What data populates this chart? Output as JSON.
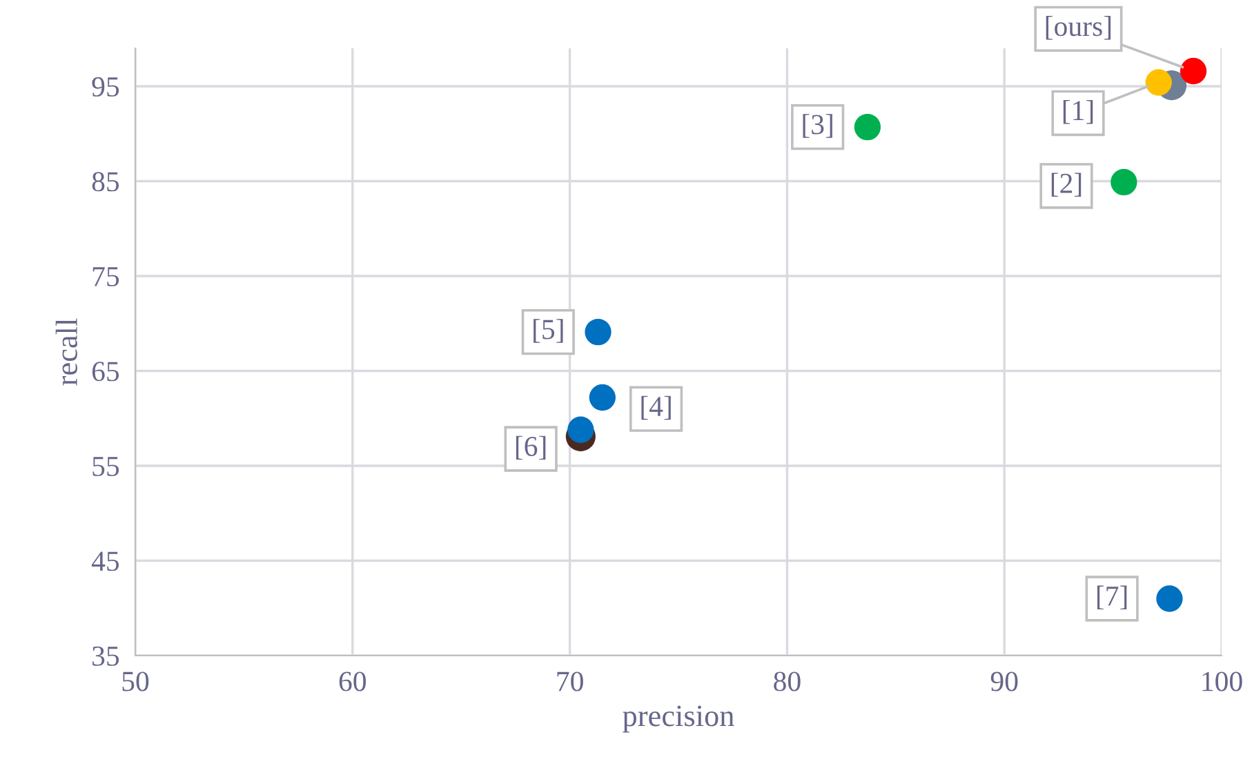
{
  "chart_data": {
    "type": "scatter",
    "xlabel": "precision",
    "ylabel": "recall",
    "xlim": [
      50,
      100
    ],
    "xticks": [
      50,
      60,
      70,
      80,
      90,
      100
    ],
    "ylim": [
      35,
      99
    ],
    "yticks": [
      35,
      45,
      55,
      65,
      75,
      85,
      95
    ],
    "grid": true,
    "legend": false,
    "marker": "circle",
    "series": [
      {
        "color": "#6f7f95",
        "x": [
          97.7
        ],
        "values": [
          95.1
        ]
      },
      {
        "color": "#4a2a20",
        "x": [
          70.5
        ],
        "values": [
          58.1
        ]
      },
      {
        "name": "[ours]",
        "color": "#ff0000",
        "x": [
          98.7
        ],
        "values": [
          96.6
        ]
      },
      {
        "name": "[1]",
        "color": "#ffc000",
        "x": [
          97.1
        ],
        "values": [
          95.4
        ]
      },
      {
        "name": "[2]",
        "color": "#00b050",
        "x": [
          95.5
        ],
        "values": [
          84.9
        ]
      },
      {
        "name": "[3]",
        "color": "#00b050",
        "x": [
          83.7
        ],
        "values": [
          90.7
        ]
      },
      {
        "name": "[5]",
        "color": "#0070c0",
        "x": [
          71.3
        ],
        "values": [
          69.1
        ]
      },
      {
        "name": "[4]",
        "color": "#0070c0",
        "x": [
          71.5
        ],
        "values": [
          62.2
        ]
      },
      {
        "name": "[6]",
        "color": "#0070c0",
        "x": [
          70.5
        ],
        "values": [
          58.8
        ]
      },
      {
        "name": "[7]",
        "color": "#0070c0",
        "x": [
          97.6
        ],
        "values": [
          41.0
        ]
      }
    ]
  }
}
